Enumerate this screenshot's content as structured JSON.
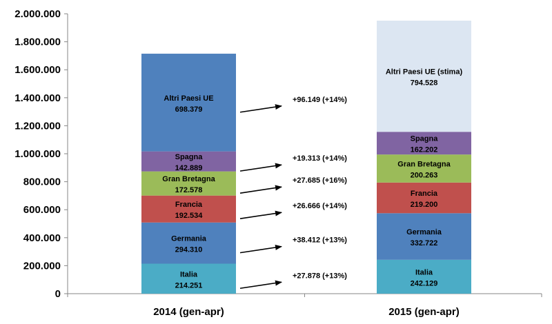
{
  "chart_data": {
    "type": "bar",
    "stacked": true,
    "categories": [
      "2014 (gen-apr)",
      "2015 (gen-apr)"
    ],
    "ylim": [
      0,
      2000000
    ],
    "y_ticks": [
      "0",
      "200.000",
      "400.000",
      "600.000",
      "800.000",
      "1.000.000",
      "1.200.000",
      "1.400.000",
      "1.600.000",
      "1.800.000",
      "2.000.000"
    ],
    "y_tick_values": [
      0,
      200000,
      400000,
      600000,
      800000,
      1000000,
      1200000,
      1400000,
      1600000,
      1800000,
      2000000
    ],
    "series": [
      {
        "name": "Italia",
        "color": "#4BACC6",
        "values": [
          214251,
          242129
        ],
        "labels": [
          "Italia",
          "Italia"
        ],
        "value_labels": [
          "214.251",
          "242.129"
        ]
      },
      {
        "name": "Germania",
        "color": "#4F81BD",
        "values": [
          294310,
          332722
        ],
        "labels": [
          "Germania",
          "Germania"
        ],
        "value_labels": [
          "294.310",
          "332.722"
        ]
      },
      {
        "name": "Francia",
        "color": "#C0504D",
        "values": [
          192534,
          219200
        ],
        "labels": [
          "Francia",
          "Francia"
        ],
        "value_labels": [
          "192.534",
          "219.200"
        ]
      },
      {
        "name": "Gran Bretagna",
        "color": "#9BBB59",
        "values": [
          172578,
          200263
        ],
        "labels": [
          "Gran Bretagna",
          "Gran Bretagna"
        ],
        "value_labels": [
          "172.578",
          "200.263"
        ]
      },
      {
        "name": "Spagna",
        "color": "#8064A2",
        "values": [
          142889,
          162202
        ],
        "labels": [
          "Spagna",
          "Spagna"
        ],
        "value_labels": [
          "142.889",
          "162.202"
        ]
      },
      {
        "name": "Altri Paesi UE",
        "colors": [
          "#4F81BD",
          "#DCE6F2"
        ],
        "values": [
          698379,
          794528
        ],
        "labels": [
          "Altri Paesi UE",
          "Altri Paesi UE (stima)"
        ],
        "value_labels": [
          "698.379",
          "794.528"
        ]
      }
    ],
    "annotations": [
      {
        "series": "Italia",
        "text": "+27.878 (+13%)"
      },
      {
        "series": "Germania",
        "text": "+38.412 (+13%)"
      },
      {
        "series": "Francia",
        "text": "+26.666 (+14%)"
      },
      {
        "series": "Gran Bretagna",
        "text": "+27.685 (+16%)"
      },
      {
        "series": "Spagna",
        "text": "+19.313 (+14%)"
      },
      {
        "series": "Altri Paesi UE",
        "text": "+96.149 (+14%)"
      }
    ]
  }
}
